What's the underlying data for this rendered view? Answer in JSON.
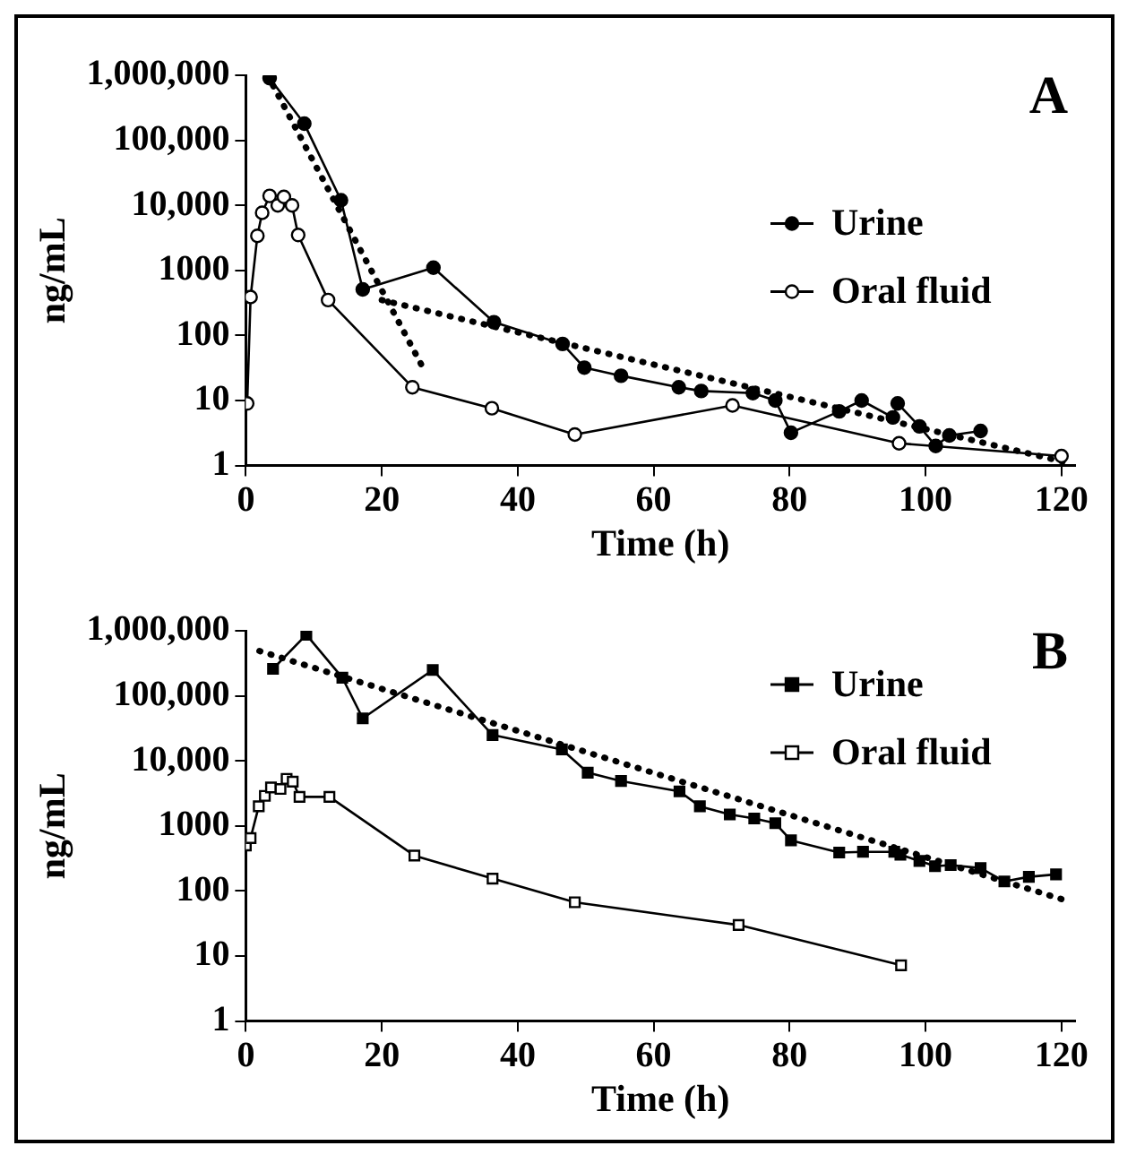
{
  "chart_data": [
    {
      "type": "line",
      "title": "A",
      "xlabel": "Time (h)",
      "ylabel": "ng/mL",
      "log": "y",
      "xlim": [
        0,
        122
      ],
      "xticks": [
        0,
        20,
        40,
        60,
        80,
        100,
        120
      ],
      "ylim": [
        1,
        1000000
      ],
      "yticks": [
        1,
        10,
        100,
        1000,
        {
          "value": 10000,
          "label": "10,000"
        },
        {
          "value": 100000,
          "label": "100,000"
        },
        {
          "value": 1000000,
          "label": "1,000,000"
        }
      ],
      "grid": false,
      "legend": "right",
      "line_style": "solid",
      "series": [
        {
          "name": "Urine",
          "color": "#000000",
          "marker": "circle",
          "x": [
            3.5,
            8.6,
            14,
            17.2,
            27.6,
            36.5,
            46.6,
            49.8,
            55.2,
            63.7,
            67,
            74.6,
            77.9,
            80.2,
            87.3,
            90.6,
            95.2,
            95.9,
            99.1,
            101.5,
            103.5,
            108.1
          ],
          "values": [
            900000,
            180000,
            12000,
            510,
            1100,
            160,
            74,
            32,
            24,
            16,
            14,
            13,
            10,
            3.2,
            6.8,
            10,
            5.5,
            9,
            4,
            2,
            2.9,
            3.4
          ]
        },
        {
          "name": "Oral fluid",
          "color": "#000000",
          "marker": "circle",
          "x": [
            0.2,
            0.7,
            1.7,
            2.4,
            3.5,
            4.7,
            5.6,
            6.8,
            7.7,
            12.1,
            24.5,
            36.2,
            48.4,
            71.6,
            96.1,
            120
          ],
          "values": [
            9,
            390,
            3400,
            7700,
            14000,
            10000,
            13500,
            10000,
            3500,
            350,
            16,
            7.6,
            3,
            8.4,
            2.2,
            1.4
          ]
        },
        {
          "type": "line",
          "color": "#000000",
          "marker": "none",
          "line_style": "dotted",
          "x": [
            3.2,
            26.2
          ],
          "values": [
            1000000,
            30
          ]
        },
        {
          "type": "line",
          "color": "#000000",
          "marker": "none",
          "line_style": "dotted",
          "x": [
            20,
            121
          ],
          "values": [
            350,
            1.1
          ]
        }
      ]
    },
    {
      "type": "line",
      "title": "B",
      "xlabel": "Time (h)",
      "ylabel": "ng/mL",
      "log": "y",
      "xlim": [
        0,
        122
      ],
      "xticks": [
        0,
        20,
        40,
        60,
        80,
        100,
        120
      ],
      "ylim": [
        1,
        1000000
      ],
      "yticks": [
        1,
        10,
        100,
        1000,
        {
          "value": 10000,
          "label": "10,000"
        },
        {
          "value": 100000,
          "label": "100,000"
        },
        {
          "value": 1000000,
          "label": "1,000,000"
        }
      ],
      "grid": false,
      "legend": "top right",
      "line_style": "solid",
      "series": [
        {
          "name": "Urine",
          "color": "#000000",
          "marker": "square",
          "x": [
            4,
            8.9,
            14.2,
            17.2,
            27.5,
            36.3,
            46.5,
            50.3,
            55.2,
            63.8,
            66.8,
            71.2,
            74.8,
            77.9,
            80.2,
            87.3,
            90.8,
            95.4,
            96.3,
            99.1,
            101.4,
            103.7,
            108.1,
            111.6,
            115.2,
            119.2
          ],
          "values": [
            260000,
            870000,
            190000,
            45000,
            250000,
            25000,
            15000,
            6600,
            4900,
            3400,
            2000,
            1500,
            1300,
            1100,
            600,
            390,
            400,
            400,
            360,
            290,
            240,
            250,
            225,
            140,
            165,
            180
          ]
        },
        {
          "name": "Oral fluid",
          "color": "#000000",
          "marker": "square",
          "x": [
            0,
            0.7,
            1.9,
            2.8,
            3.7,
            5.1,
            6,
            6.9,
            7.9,
            12.3,
            24.8,
            36.3,
            48.4,
            72.5,
            96.4
          ],
          "values": [
            500,
            650,
            2000,
            2900,
            3900,
            3700,
            5300,
            4800,
            2800,
            2800,
            350,
            155,
            67,
            30,
            7.2
          ]
        },
        {
          "type": "line",
          "color": "#000000",
          "marker": "none",
          "line_style": "dotted",
          "x": [
            2,
            120
          ],
          "values": [
            490000,
            75
          ]
        }
      ]
    }
  ]
}
